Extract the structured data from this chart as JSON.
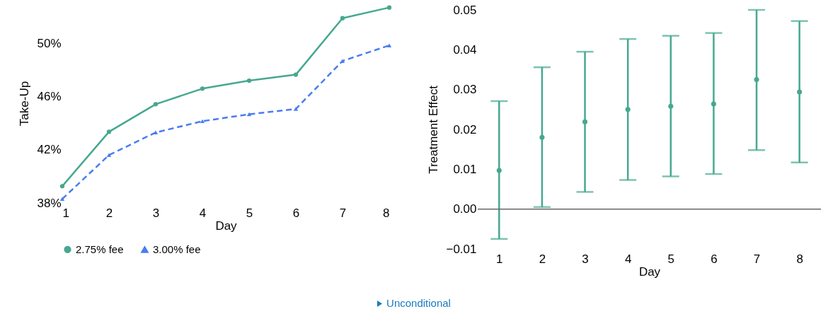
{
  "chart_data": [
    {
      "type": "line",
      "xlabel": "Day",
      "ylabel": "Take-Up",
      "x": [
        1,
        2,
        3,
        4,
        5,
        6,
        7,
        8
      ],
      "xlim": [
        1,
        8
      ],
      "xticks": [
        1,
        2,
        3,
        4,
        5,
        6,
        7,
        8
      ],
      "ylim": [
        38,
        53
      ],
      "yticks": [
        {
          "value": 38,
          "label": "38%"
        },
        {
          "value": 42,
          "label": "42%"
        },
        {
          "value": 46,
          "label": "46%"
        },
        {
          "value": 50,
          "label": "50%"
        }
      ],
      "legend": "bottom",
      "annotations": [
        "Unconditional"
      ],
      "series": [
        {
          "name": "2.75% fee",
          "color": "#46a88f",
          "marker": "circle",
          "line_style": "solid",
          "values": [
            39.26,
            43.35,
            45.43,
            46.6,
            47.2,
            47.65,
            51.9,
            52.7
          ]
        },
        {
          "name": "3.00% fee",
          "color": "#4a7cf3",
          "marker": "triangle",
          "line_style": "dashed",
          "values": [
            38.3,
            41.6,
            43.3,
            44.15,
            44.67,
            45.07,
            48.68,
            49.85
          ]
        }
      ]
    },
    {
      "type": "scatter",
      "xlabel": "Day",
      "ylabel": "Treatment Effect",
      "categories": [
        "1",
        "2",
        "3",
        "4",
        "5",
        "6",
        "7",
        "8"
      ],
      "ylim": [
        -0.01,
        0.05
      ],
      "yticks": [
        {
          "value": -0.01,
          "label": "−0.01"
        },
        {
          "value": 0,
          "label": "0.00"
        },
        0.01,
        0.02,
        0.03,
        0.04,
        0.05
      ],
      "marker": "circle",
      "ref_lines": [
        {
          "axis": "y",
          "value": 0,
          "color": "#666666"
        }
      ],
      "series": [
        {
          "color": "#46a88f",
          "values": [
            0.0097,
            0.018,
            0.0219,
            0.025,
            0.0258,
            0.0264,
            0.0325,
            0.0294
          ],
          "errors": [
            [
              -0.0075,
              0.0271
            ],
            [
              0.0005,
              0.0356
            ],
            [
              0.0043,
              0.0395
            ],
            [
              0.0073,
              0.0427
            ],
            [
              0.0082,
              0.0435
            ],
            [
              0.0088,
              0.0442
            ],
            [
              0.0148,
              0.05
            ],
            [
              0.0117,
              0.0472
            ]
          ]
        }
      ]
    }
  ]
}
